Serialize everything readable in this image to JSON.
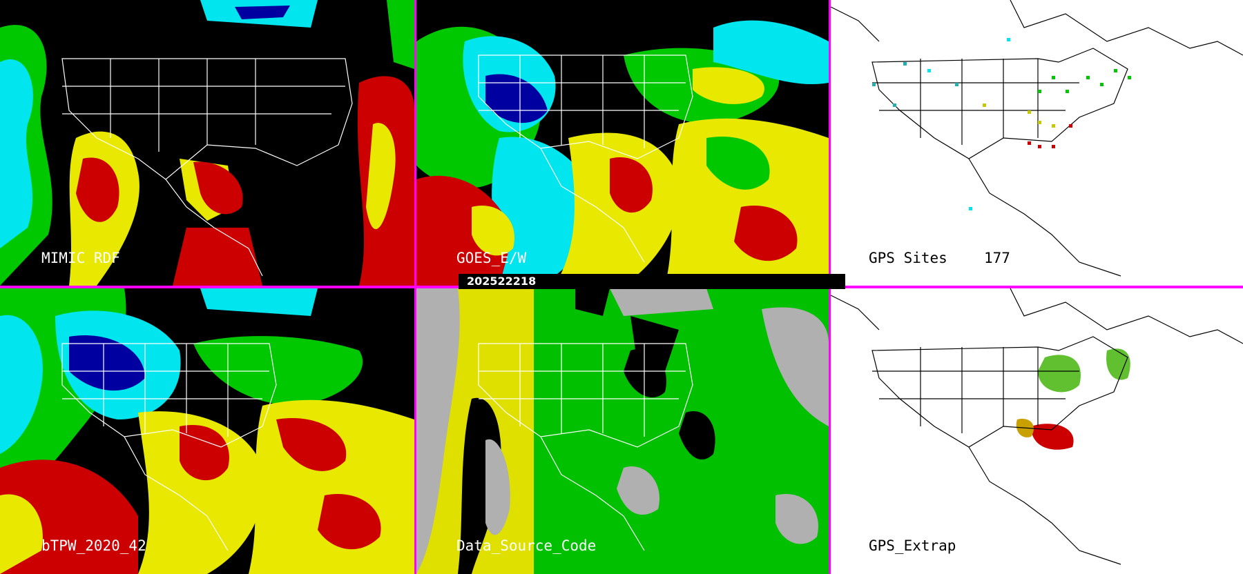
{
  "timestamp": "202522218",
  "panels": [
    {
      "id": "mimic",
      "label": "MIMIC RDF",
      "background": "#000000",
      "label_color": "#ffffff"
    },
    {
      "id": "goes",
      "label": "GOES_E/W",
      "background": "#000000",
      "label_color": "#ffffff"
    },
    {
      "id": "gps_sites",
      "label": "GPS Sites",
      "count": "177",
      "background": "#ffffff",
      "label_color": "#000000"
    },
    {
      "id": "btpw",
      "label": "bTPW_2020_42",
      "background": "#000000",
      "label_color": "#ffffff"
    },
    {
      "id": "dsc",
      "label": "Data_Source_Code",
      "background": "#000000",
      "label_color": "#ffffff"
    },
    {
      "id": "gps_extrap",
      "label": "GPS_Extrap",
      "background": "#ffffff",
      "label_color": "#000000"
    }
  ],
  "colors": {
    "divider": "#ff00ff",
    "very_low": "#0000a0",
    "low": "#00e5ee",
    "mid": "#00c800",
    "high": "#e8e800",
    "very_high": "#cc0000",
    "no_data": "#000000",
    "dsc_gray": "#b0b0b0",
    "dsc_yellow": "#e0e000",
    "dsc_green": "#00c000"
  }
}
